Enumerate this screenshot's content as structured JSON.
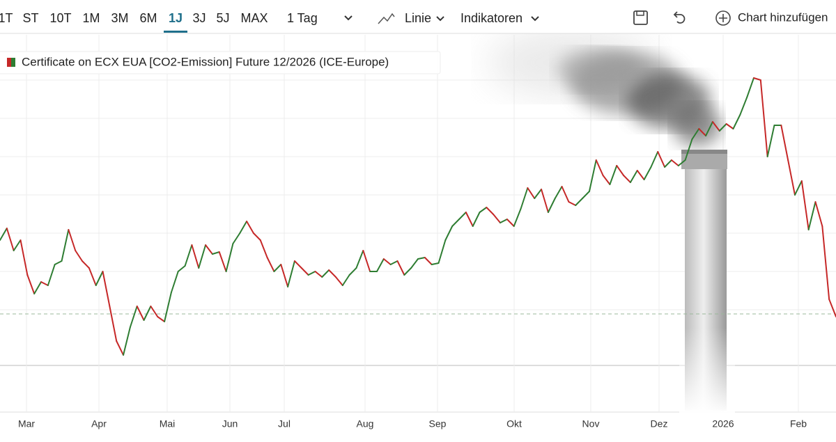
{
  "toolbar": {
    "ranges": [
      "1T",
      "ST",
      "10T",
      "1M",
      "3M",
      "6M",
      "1J",
      "3J",
      "5J",
      "MAX"
    ],
    "active_range": "1J",
    "interval": "1 Tag",
    "chart_style": "Linie",
    "indicators": "Indikatoren",
    "add_chart": "Chart hinzufügen"
  },
  "chart_data": {
    "type": "line",
    "legend": "Certificate on ECX EUA [CO2-Emission] Future 12/2026 (ICE-Europe)",
    "up_color": "#2e7d32",
    "down_color": "#c62828",
    "grid": true,
    "xlim": [
      0,
      120
    ],
    "ylim": [
      0,
      100
    ],
    "reference_line": 25.8,
    "xticks": [
      {
        "value": 3.8,
        "label": "Mar"
      },
      {
        "value": 14.2,
        "label": "Apr"
      },
      {
        "value": 24,
        "label": "Mai"
      },
      {
        "value": 33,
        "label": "Jun"
      },
      {
        "value": 40.8,
        "label": "Jul"
      },
      {
        "value": 52.4,
        "label": "Aug"
      },
      {
        "value": 62.8,
        "label": "Sep"
      },
      {
        "value": 73.8,
        "label": "Okt"
      },
      {
        "value": 84.8,
        "label": "Nov"
      },
      {
        "value": 94.6,
        "label": "Dez"
      },
      {
        "value": 103.8,
        "label": "2026"
      },
      {
        "value": 114.6,
        "label": "Feb"
      }
    ],
    "series": [
      {
        "name": "Certificate on ECX EUA [CO2-Emission] Future 12/2026 (ICE-Europe)",
        "values": [
          47,
          50.4,
          44,
          47,
          37,
          31.6,
          35,
          34,
          40,
          41,
          50,
          44,
          41,
          39,
          34,
          38,
          28,
          18,
          14,
          22,
          28,
          24,
          28,
          25,
          23.6,
          32,
          38,
          39.6,
          45.6,
          39,
          45.6,
          43,
          43.6,
          38,
          46,
          49,
          52.4,
          49,
          47,
          42,
          38,
          40,
          33.6,
          41,
          39,
          37,
          38,
          36.4,
          38.4,
          36.4,
          34,
          37,
          39,
          44,
          38,
          38,
          41.6,
          40,
          41,
          37,
          39,
          41.6,
          42,
          40,
          40.4,
          47,
          51,
          53,
          55,
          51,
          55,
          56.4,
          54.4,
          52,
          53,
          51,
          56,
          62,
          59,
          61.6,
          55,
          59,
          62.4,
          58,
          57,
          59,
          61,
          70,
          65.6,
          63,
          68.4,
          65.6,
          63.6,
          67,
          64.4,
          68,
          72.4,
          68,
          70,
          68.4,
          70,
          76,
          79,
          77,
          81,
          78.4,
          80.4,
          79,
          83,
          88,
          93.6,
          93,
          71,
          80,
          80,
          70,
          60,
          64,
          50,
          58,
          51,
          30,
          25
        ]
      }
    ]
  }
}
